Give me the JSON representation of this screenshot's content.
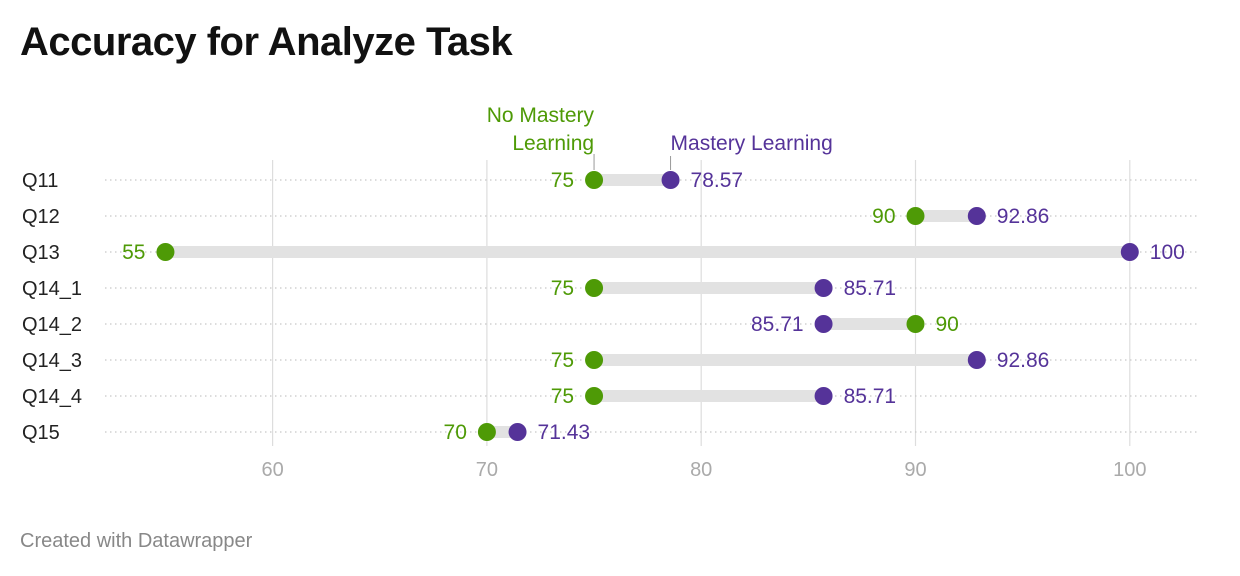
{
  "title": "Accuracy for Analyze Task",
  "footer": "Created with Datawrapper",
  "colors": {
    "no_mastery": "#4e9a06",
    "mastery": "#553399",
    "range_bar": "#e2e2e2",
    "grid": "#dddddd",
    "tick_text": "#aaaaaa",
    "category_text": "#222222"
  },
  "chart_data": {
    "type": "dot-range",
    "title": "Accuracy for Analyze Task",
    "categories": [
      "Q11",
      "Q12",
      "Q13",
      "Q14_1",
      "Q14_2",
      "Q14_3",
      "Q14_4",
      "Q15"
    ],
    "series": [
      {
        "name": "No Mastery Learning",
        "values": [
          75,
          90,
          55,
          75,
          90,
          75,
          75,
          70
        ]
      },
      {
        "name": "Mastery Learning",
        "values": [
          78.57,
          92.86,
          100,
          85.71,
          85.71,
          92.86,
          85.71,
          71.43
        ]
      }
    ],
    "value_labels": {
      "No Mastery Learning": [
        "75",
        "90",
        "55",
        "75",
        "90",
        "75",
        "75",
        "70"
      ],
      "Mastery Learning": [
        "78.57",
        "92.86",
        "100",
        "85.71",
        "85.71",
        "92.86",
        "85.71",
        "71.43"
      ]
    },
    "legend_labels": {
      "No Mastery Learning": [
        "No Mastery",
        "Learning"
      ],
      "Mastery Learning": [
        "Mastery Learning"
      ]
    },
    "x_ticks": [
      60,
      70,
      80,
      90,
      100
    ],
    "x_tick_labels": [
      "60",
      "70",
      "80",
      "90",
      "100"
    ],
    "xlim": [
      52.5,
      103.2
    ],
    "grid": true,
    "legend_placement": "inline above first row"
  }
}
